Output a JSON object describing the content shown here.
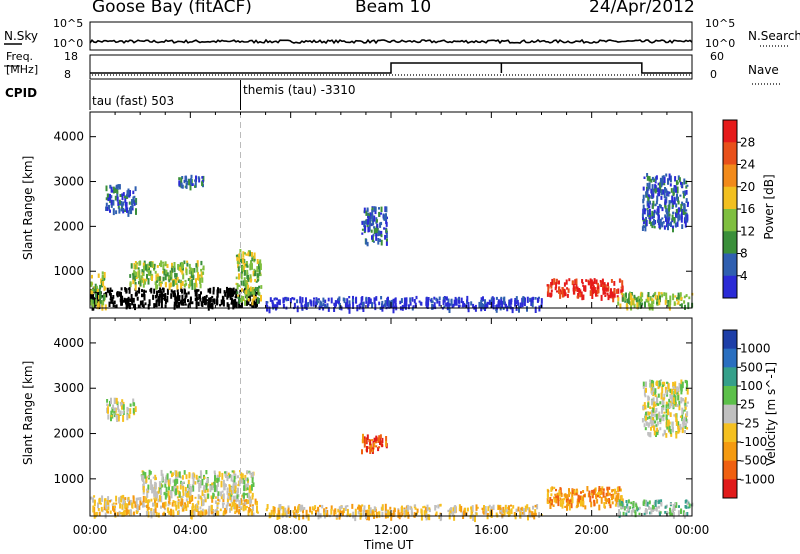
{
  "header": {
    "station": "Goose Bay (fitACF)",
    "beam": "Beam 10",
    "date": "24/Apr/2012"
  },
  "top_panels": {
    "nsky_label": "N.Sky",
    "nsearch_label": "N.Search",
    "noise_ticks_left": [
      "10^5",
      "10^0"
    ],
    "noise_ticks_right": [
      "10^5",
      "10^0"
    ],
    "freq_label_line1": "Freq.",
    "freq_label_line2": "[MHz]",
    "freq_ticks": [
      "18",
      "8"
    ],
    "nave_label": "Nave",
    "nave_ticks": [
      "60",
      "0"
    ],
    "cpid_label": "CPID",
    "cpid_segments": [
      "tau (fast) 503",
      "themis (tau) -3310"
    ]
  },
  "colors": {
    "power_scale": [
      "#2b2bd6",
      "#2f5fb0",
      "#3a8f3a",
      "#7fbf3f",
      "#f2c020",
      "#f28a1a",
      "#e8501a",
      "#e61a1a"
    ],
    "velocity_scale": [
      "#1e3fa8",
      "#2a6fc0",
      "#35a08a",
      "#5cc04a",
      "#c0c0c0",
      "#f5c020",
      "#f59a10",
      "#f06010",
      "#e01a1a"
    ]
  },
  "chart_data": [
    {
      "type": "heatmap",
      "title": "Power",
      "xlabel": "",
      "ylabel": "Slant Range [km]",
      "xlim": [
        0,
        24
      ],
      "ylim": [
        180,
        4550
      ],
      "x_ticks": [],
      "y_ticks": [
        "1000",
        "2000",
        "3000",
        "4000"
      ],
      "colorbar_label": "Power [dB]",
      "colorbar_ticks": [
        "4",
        "8",
        "12",
        "16",
        "20",
        "24",
        "28"
      ],
      "features": [
        {
          "x0": 0.0,
          "x1": 6.7,
          "y0": 250,
          "y1": 650,
          "level": 5.5
        },
        {
          "x0": 0.0,
          "x1": 0.6,
          "y0": 250,
          "y1": 1000,
          "level": 3
        },
        {
          "x0": 1.5,
          "x1": 4.5,
          "y0": 700,
          "y1": 1250,
          "level": 3
        },
        {
          "x0": 5.8,
          "x1": 6.8,
          "y0": 350,
          "y1": 1500,
          "level": 3
        },
        {
          "x0": 0.6,
          "x1": 1.8,
          "y0": 2350,
          "y1": 2950,
          "level": 1
        },
        {
          "x0": 3.5,
          "x1": 4.5,
          "y0": 2900,
          "y1": 3150,
          "level": 1
        },
        {
          "x0": 10.8,
          "x1": 11.8,
          "y0": 1650,
          "y1": 2450,
          "level": 1
        },
        {
          "x0": 18.2,
          "x1": 21.2,
          "y0": 450,
          "y1": 850,
          "level": 7
        },
        {
          "x0": 21.0,
          "x1": 24.0,
          "y0": 250,
          "y1": 550,
          "level": 3
        },
        {
          "x0": 22.0,
          "x1": 23.8,
          "y0": 2000,
          "y1": 3200,
          "level": 1
        },
        {
          "x0": 7.0,
          "x1": 18.0,
          "y0": 200,
          "y1": 450,
          "level": 0
        }
      ]
    },
    {
      "type": "heatmap",
      "title": "Velocity",
      "xlabel": "Time UT",
      "ylabel": "Slant Range [km]",
      "xlim": [
        0,
        24
      ],
      "ylim": [
        180,
        4550
      ],
      "x_ticks": [
        "00:00",
        "04:00",
        "08:00",
        "12:00",
        "16:00",
        "20:00",
        "00:00"
      ],
      "y_ticks": [
        "1000",
        "2000",
        "3000",
        "4000"
      ],
      "colorbar_label": "Velocity [m s^-1]",
      "colorbar_ticks": [
        "1000",
        "500",
        "100",
        "25",
        "-25",
        "-100",
        "-500",
        "-1000"
      ],
      "features": [
        {
          "x0": 0.0,
          "x1": 6.7,
          "y0": 250,
          "y1": 650,
          "level": 5
        },
        {
          "x0": 2.0,
          "x1": 6.5,
          "y0": 650,
          "y1": 1200,
          "level": 4
        },
        {
          "x0": 18.2,
          "x1": 21.2,
          "y0": 400,
          "y1": 850,
          "level": 6
        },
        {
          "x0": 21.0,
          "x1": 24.0,
          "y0": 250,
          "y1": 550,
          "level": 3
        },
        {
          "x0": 22.0,
          "x1": 23.8,
          "y0": 2000,
          "y1": 3200,
          "level": 4
        },
        {
          "x0": 10.8,
          "x1": 11.8,
          "y0": 1650,
          "y1": 2000,
          "level": 7
        },
        {
          "x0": 0.6,
          "x1": 1.8,
          "y0": 2400,
          "y1": 2800,
          "level": 4
        },
        {
          "x0": 7.0,
          "x1": 18.0,
          "y0": 200,
          "y1": 450,
          "level": 5
        }
      ]
    }
  ]
}
